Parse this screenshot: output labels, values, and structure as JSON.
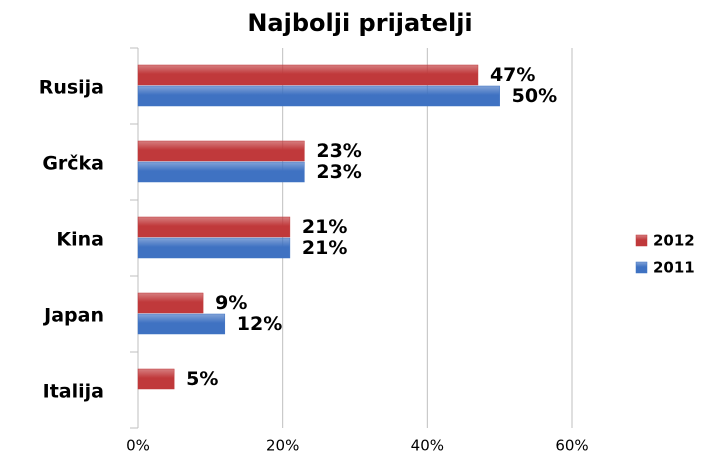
{
  "chart_data": {
    "type": "bar",
    "orientation": "horizontal",
    "title": "Najbolji prijatelji",
    "categories": [
      "Rusija",
      "Grčka",
      "Kina",
      "Japan",
      "Italija"
    ],
    "series": [
      {
        "name": "2012",
        "color": "#c0393b",
        "values": [
          47,
          23,
          21,
          9,
          5
        ],
        "value_labels": [
          "47%",
          "23%",
          "21%",
          "9%",
          "5%"
        ]
      },
      {
        "name": "2011",
        "color": "#3f72c2",
        "values": [
          50,
          23,
          21,
          12,
          null
        ],
        "value_labels": [
          "50%",
          "23%",
          "21%",
          "12%",
          null
        ]
      }
    ],
    "xlim": [
      0,
      60
    ],
    "xticks": [
      {
        "value": 0,
        "label": "0%"
      },
      {
        "value": 20,
        "label": "20%"
      },
      {
        "value": 40,
        "label": "40%"
      },
      {
        "value": 60,
        "label": "60%"
      }
    ],
    "grid": true,
    "legend": "right"
  }
}
